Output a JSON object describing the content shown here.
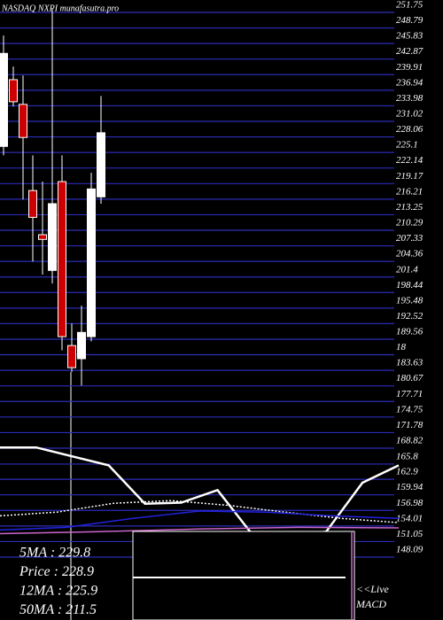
{
  "chart_data": {
    "type": "candlestick",
    "title": "NASDAQ NXPI munafasutra.pro",
    "ylim": [
      148.09,
      251.75
    ],
    "yticks": [
      251.75,
      248.79,
      245.83,
      242.87,
      239.91,
      236.94,
      233.98,
      231.02,
      228.06,
      225.1,
      222.14,
      219.17,
      216.21,
      213.25,
      210.29,
      207.33,
      204.36,
      201.4,
      198.44,
      195.48,
      192.52,
      189.56,
      {
        "value": 186.6,
        "label": "18"
      },
      183.63,
      180.67,
      177.71,
      174.75,
      171.78,
      168.82,
      165.8,
      162.9,
      159.94,
      156.98,
      154.01,
      151.05,
      148.09
    ],
    "grid": true,
    "grid_color": "#2c2cb8",
    "up_color": "#ffffff",
    "down_color": "#cc0000",
    "candles": [
      {
        "open": 224.9,
        "high": 246.0,
        "low": 223.2,
        "close": 242.6
      },
      {
        "open": 237.6,
        "high": 240.1,
        "low": 232.5,
        "close": 233.4
      },
      {
        "open": 232.9,
        "high": 238.4,
        "low": 214.8,
        "close": 226.6
      },
      {
        "open": 216.5,
        "high": 223.2,
        "low": 203.0,
        "close": 211.4
      },
      {
        "open": 208.1,
        "high": 218.2,
        "low": 200.5,
        "close": 207.2
      },
      {
        "open": 201.3,
        "high": 251.1,
        "low": 198.8,
        "close": 214.0
      },
      {
        "open": 218.2,
        "high": 223.2,
        "low": 186.1,
        "close": 188.7
      },
      {
        "open": 187.0,
        "high": 191.2,
        "low": 182.0,
        "close": 182.8
      },
      {
        "open": 184.5,
        "high": 194.6,
        "low": 179.4,
        "close": 189.5
      },
      {
        "open": 188.7,
        "high": 219.9,
        "low": 187.8,
        "close": 216.8
      },
      {
        "open": 215.3,
        "high": 234.5,
        "low": 214.0,
        "close": 227.5
      }
    ],
    "series": [
      {
        "color": "#ffffff",
        "style": "thick",
        "values": [
          167.6,
          167.6,
          165.9,
          164.2,
          156.9,
          157.1,
          159.5,
          150.7,
          150.7,
          151.6,
          160.9,
          164.2
        ]
      },
      {
        "color": "#ffffff",
        "style": "dotted",
        "values": [
          154.6,
          155.3,
          156.99,
          157.5,
          156.6,
          155.3,
          154.1,
          153.3
        ]
      },
      {
        "color": "#2222dd",
        "style": "solid",
        "values": [
          151.9,
          152.4,
          154.1,
          155.5,
          155.3,
          154.6,
          154.1
        ]
      },
      {
        "color": "#cc66cc",
        "style": "solid",
        "values": [
          151.2,
          151.6,
          152.1,
          152.4,
          152.3
        ]
      }
    ],
    "info": [
      "5MA : 229.8",
      "Price : 228.9",
      "12MA : 225.9",
      "50MA : 211.5"
    ],
    "macd_label": [
      "<<Live",
      "MACD"
    ]
  }
}
